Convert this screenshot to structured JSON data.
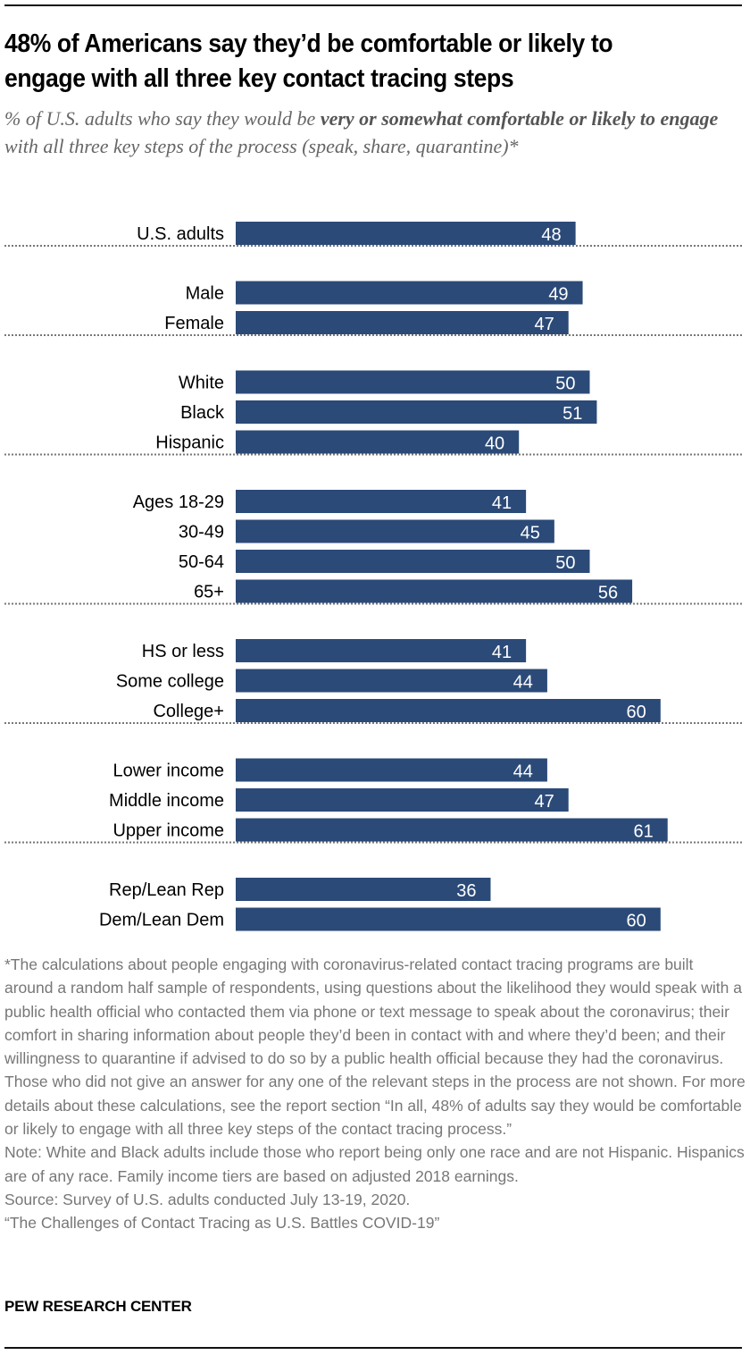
{
  "header": {
    "title": "48% of Americans say they’d be comfortable or likely to engage with all three key contact tracing steps",
    "subtitle_pre": "% of U.S. adults who say they would be ",
    "subtitle_bold": "very or somewhat comfortable or likely to engage",
    "subtitle_post": " with all three key steps of the process (speak, share, quarantine)*"
  },
  "colors": {
    "bar": "#2b4a78",
    "separator": "#777777",
    "note_text": "#777777"
  },
  "chart_data": {
    "type": "bar",
    "orientation": "horizontal",
    "title": "48% of Americans say they’d be comfortable or likely to engage with all three key contact tracing steps",
    "xlabel": "",
    "ylabel": "",
    "xlim": [
      0,
      100
    ],
    "unit": "%",
    "grid": false,
    "groups": [
      {
        "categories": [
          "U.S. adults"
        ],
        "values": [
          48
        ]
      },
      {
        "categories": [
          "Male",
          "Female"
        ],
        "values": [
          49,
          47
        ]
      },
      {
        "categories": [
          "White",
          "Black",
          "Hispanic"
        ],
        "values": [
          50,
          51,
          40
        ]
      },
      {
        "categories": [
          "Ages 18-29",
          "30-49",
          "50-64",
          "65+"
        ],
        "values": [
          41,
          45,
          50,
          56
        ]
      },
      {
        "categories": [
          "HS or less",
          "Some college",
          "College+"
        ],
        "values": [
          41,
          44,
          60
        ]
      },
      {
        "categories": [
          "Lower income",
          "Middle income",
          "Upper income"
        ],
        "values": [
          44,
          47,
          61
        ]
      },
      {
        "categories": [
          "Rep/Lean Rep",
          "Dem/Lean Dem"
        ],
        "values": [
          36,
          60
        ]
      }
    ]
  },
  "notes": {
    "footnote": "*The calculations about people engaging with coronavirus-related contact tracing programs are built around a random half sample of respondents, using questions about the likelihood they would speak with a public health official who contacted them via phone or text message to speak about the coronavirus; their comfort in sharing information about people they’d been in contact with and where they’d been; and their willingness to quarantine if advised to do so by a public health official because they had the coronavirus. Those who did not give an answer for any one of the relevant steps in the process are not shown. For more details about these calculations, see the report section “In all, 48% of adults say they would be comfortable or likely to engage with all three key steps of the contact tracing process.”",
    "note": "Note: White and Black adults include those who report being only one race and are not Hispanic. Hispanics are of any race. Family income tiers are based on adjusted 2018 earnings.",
    "source": "Source: Survey of U.S. adults conducted July 13-19, 2020.",
    "report": "“The Challenges of Contact Tracing as U.S. Battles COVID-19”"
  },
  "brand": "PEW RESEARCH CENTER"
}
